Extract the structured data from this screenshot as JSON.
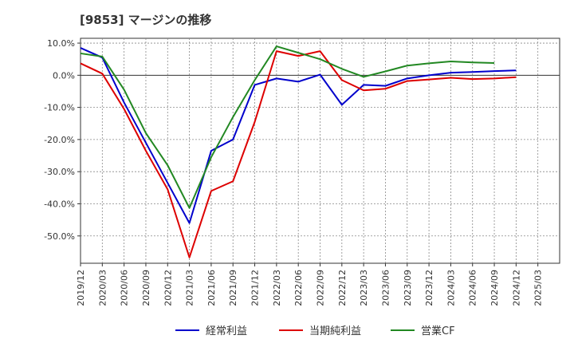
{
  "chart_data": {
    "type": "line",
    "title": "[9853]  マージンの推移",
    "xlabel": "",
    "ylabel": "",
    "ylim": [
      -58.5,
      11.5
    ],
    "grid": true,
    "legend_position": "bottom",
    "x": [
      "2019/12",
      "2020/03",
      "2020/06",
      "2020/09",
      "2020/12",
      "2021/03",
      "2021/06",
      "2021/09",
      "2021/12",
      "2022/03",
      "2022/06",
      "2022/09",
      "2022/12",
      "2023/03",
      "2023/06",
      "2023/09",
      "2023/12",
      "2024/03",
      "2024/06",
      "2024/09",
      "2024/12",
      "2025/03"
    ],
    "y_ticks": [
      10,
      0,
      -10,
      -20,
      -30,
      -40,
      -50
    ],
    "y_tick_labels": [
      "10.0%",
      "0.0%",
      "-10.0%",
      "-20.0%",
      "-30.0%",
      "-40.0%",
      "-50.0%"
    ],
    "series": [
      {
        "name": "経常利益",
        "color": "#0000cc",
        "values": [
          8.5,
          5.5,
          -8.5,
          -21.0,
          -33.5,
          -46.0,
          -23.5,
          -20.0,
          -3.0,
          -1.0,
          -2.0,
          0.2,
          -9.2,
          -3.0,
          -3.3,
          -1.0,
          0.0,
          0.8,
          1.0,
          1.3,
          1.5,
          null
        ]
      },
      {
        "name": "当期純利益",
        "color": "#dd0000",
        "values": [
          3.7,
          0.5,
          -10.5,
          -23.5,
          -35.5,
          -56.7,
          -36.0,
          -33.0,
          -14.5,
          7.5,
          6.0,
          7.5,
          -1.5,
          -4.7,
          -4.2,
          -1.8,
          -1.3,
          -0.8,
          -1.2,
          -1.0,
          -0.6,
          null
        ]
      },
      {
        "name": "営業CF",
        "color": "#228822",
        "values": [
          6.8,
          5.8,
          -4.5,
          -18.0,
          -28.0,
          -41.3,
          -25.5,
          -13.0,
          -1.5,
          9.0,
          7.0,
          5.0,
          2.0,
          -0.5,
          1.2,
          3.0,
          3.7,
          4.3,
          4.0,
          3.8,
          null,
          null
        ]
      }
    ]
  }
}
